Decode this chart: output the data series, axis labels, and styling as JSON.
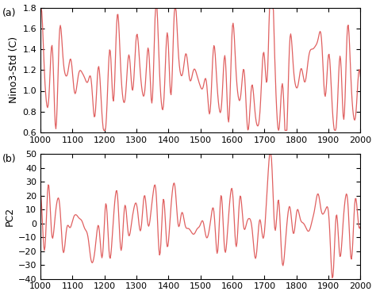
{
  "xlim": [
    1000,
    2000
  ],
  "panel_a": {
    "ylabel": "Nino3-Std (C)",
    "ylim": [
      0.6,
      1.8
    ],
    "yticks": [
      0.6,
      0.8,
      1.0,
      1.2,
      1.4,
      1.6,
      1.8
    ],
    "xticks": [
      1000,
      1100,
      1200,
      1300,
      1400,
      1500,
      1600,
      1700,
      1800,
      1900,
      2000
    ]
  },
  "panel_b": {
    "ylabel": "PC2",
    "ylim": [
      -40,
      50
    ],
    "yticks": [
      -40,
      -30,
      -20,
      -10,
      0,
      10,
      20,
      30,
      40,
      50
    ],
    "xticks": [
      1000,
      1100,
      1200,
      1300,
      1400,
      1500,
      1600,
      1700,
      1800,
      1900,
      2000
    ]
  },
  "line_color": "#E06060",
  "line_width": 0.9,
  "label_a": "(a)",
  "label_b": "(b)",
  "background_color": "#ffffff",
  "font_size": 9
}
